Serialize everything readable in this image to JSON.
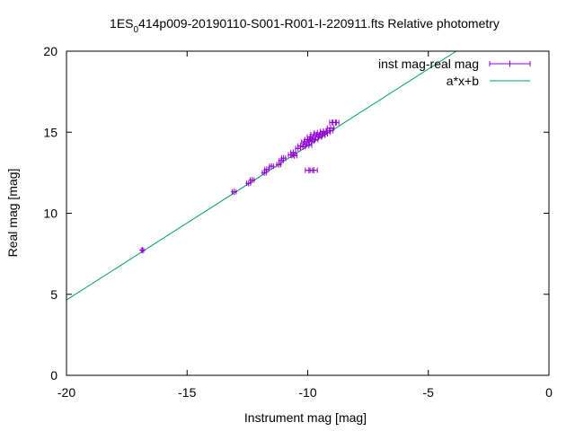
{
  "chart_data": {
    "type": "scatter",
    "title": {
      "prefix": "1ES",
      "subscript": "0",
      "suffix": "414p009-20190110-S001-R001-I-220911.fts Relative photometry"
    },
    "xlabel": "Instrument mag [mag]",
    "ylabel": "Real mag [mag]",
    "xlim": [
      -20,
      0
    ],
    "ylim": [
      0,
      20
    ],
    "xticks": [
      -20,
      -15,
      -10,
      -5,
      0
    ],
    "xtick_labels": [
      "-20",
      "-15",
      "-10",
      "-5",
      "0"
    ],
    "yticks": [
      0,
      5,
      10,
      15,
      20
    ],
    "ytick_labels": [
      "0",
      "5",
      "10",
      "15",
      "20"
    ],
    "grid": false,
    "legend_position": "top-right",
    "series": [
      {
        "name": "inst mag-real mag",
        "kind": "points-with-xerror",
        "color": "#9400d3",
        "points": [
          {
            "x": -16.85,
            "y": 7.72,
            "xerr": 0.05
          },
          {
            "x": -13.05,
            "y": 11.32,
            "xerr": 0.08
          },
          {
            "x": -12.45,
            "y": 11.85,
            "xerr": 0.08
          },
          {
            "x": -12.3,
            "y": 12.05,
            "xerr": 0.08
          },
          {
            "x": -11.8,
            "y": 12.5,
            "xerr": 0.08
          },
          {
            "x": -11.7,
            "y": 12.7,
            "xerr": 0.08
          },
          {
            "x": -11.5,
            "y": 12.9,
            "xerr": 0.08
          },
          {
            "x": -11.2,
            "y": 13.0,
            "xerr": 0.08
          },
          {
            "x": -11.1,
            "y": 13.25,
            "xerr": 0.08
          },
          {
            "x": -11.0,
            "y": 13.4,
            "xerr": 0.08
          },
          {
            "x": -10.7,
            "y": 13.6,
            "xerr": 0.1
          },
          {
            "x": -10.6,
            "y": 13.75,
            "xerr": 0.1
          },
          {
            "x": -10.55,
            "y": 13.55,
            "xerr": 0.1
          },
          {
            "x": -10.4,
            "y": 14.0,
            "xerr": 0.1
          },
          {
            "x": -10.3,
            "y": 14.15,
            "xerr": 0.1
          },
          {
            "x": -10.2,
            "y": 14.1,
            "xerr": 0.1
          },
          {
            "x": -10.15,
            "y": 14.4,
            "xerr": 0.1
          },
          {
            "x": -10.05,
            "y": 14.3,
            "xerr": 0.12
          },
          {
            "x": -10.0,
            "y": 14.55,
            "xerr": 0.12
          },
          {
            "x": -9.95,
            "y": 14.2,
            "xerr": 0.12
          },
          {
            "x": -9.9,
            "y": 14.7,
            "xerr": 0.12
          },
          {
            "x": -9.85,
            "y": 14.45,
            "xerr": 0.12
          },
          {
            "x": -9.8,
            "y": 14.6,
            "xerr": 0.12
          },
          {
            "x": -9.75,
            "y": 14.85,
            "xerr": 0.12
          },
          {
            "x": -9.7,
            "y": 14.55,
            "xerr": 0.12
          },
          {
            "x": -9.6,
            "y": 14.95,
            "xerr": 0.12
          },
          {
            "x": -9.55,
            "y": 14.7,
            "xerr": 0.12
          },
          {
            "x": -9.5,
            "y": 14.85,
            "xerr": 0.12
          },
          {
            "x": -9.4,
            "y": 14.8,
            "xerr": 0.12
          },
          {
            "x": -9.35,
            "y": 15.05,
            "xerr": 0.12
          },
          {
            "x": -9.3,
            "y": 14.9,
            "xerr": 0.12
          },
          {
            "x": -9.2,
            "y": 15.0,
            "xerr": 0.14
          },
          {
            "x": -9.1,
            "y": 15.1,
            "xerr": 0.14
          },
          {
            "x": -9.05,
            "y": 15.25,
            "xerr": 0.14
          },
          {
            "x": -8.95,
            "y": 15.6,
            "xerr": 0.14
          },
          {
            "x": -8.85,
            "y": 15.6,
            "xerr": 0.14
          },
          {
            "x": -9.95,
            "y": 12.65,
            "xerr": 0.15
          },
          {
            "x": -9.75,
            "y": 12.65,
            "xerr": 0.15
          }
        ]
      },
      {
        "name": "a*x+b",
        "kind": "line",
        "color": "#009e73",
        "a": 0.95,
        "b": 23.65,
        "x_range": [
          -20,
          0
        ]
      }
    ]
  }
}
